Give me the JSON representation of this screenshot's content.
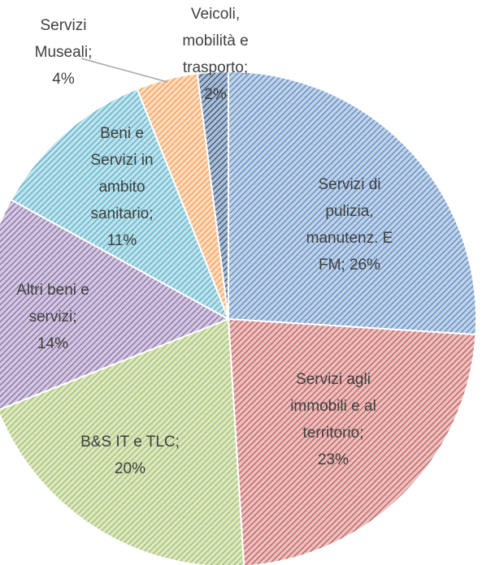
{
  "chart_data": {
    "type": "pie",
    "values": [
      26,
      23,
      20,
      14,
      11,
      4,
      2
    ],
    "value_labels": [
      [
        "Servizi di",
        "pulizia,",
        "manutenz. E",
        "FM; 26%"
      ],
      [
        "Servizi agli",
        "immobili e al",
        "territorio;",
        "23%"
      ],
      [
        "B&S IT e TLC;",
        "20%"
      ],
      [
        "Altri beni e",
        "servizi;",
        "14%"
      ],
      [
        "Beni e",
        "Servizi in",
        "ambito",
        "sanitario;",
        "11%"
      ],
      [
        "Servizi",
        "Museali;",
        "4%"
      ],
      [
        "Veicoli,",
        "mobilità e",
        "trasporto;",
        "2%"
      ]
    ],
    "colors": [
      "#4f81bd",
      "#c0504d",
      "#9bbb59",
      "#8064a2",
      "#4bacc6",
      "#f79646",
      "#1f497d"
    ]
  }
}
